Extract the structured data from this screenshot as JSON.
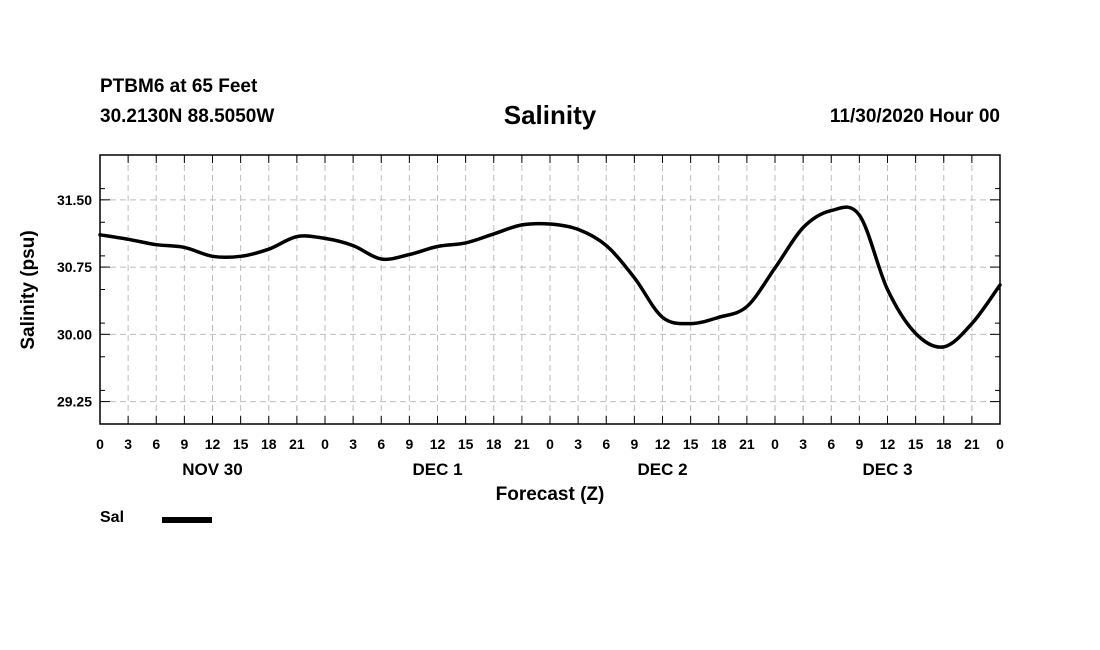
{
  "header": {
    "station": "PTBM6 at 65 Feet",
    "coords": "30.2130N 88.5050W",
    "title": "Salinity",
    "run_time": "11/30/2020 Hour 00"
  },
  "legend": {
    "label": "Sal",
    "color": "#000000"
  },
  "chart_data": {
    "type": "line",
    "title": "Salinity",
    "xlabel": "Forecast (Z)",
    "ylabel": "Salinity (psu)",
    "x_unit": "hours from 11/30/2020 00Z",
    "xlim": [
      0,
      96
    ],
    "ylim": [
      29.0,
      32.0
    ],
    "yticks": [
      29.25,
      30.0,
      30.75,
      31.5
    ],
    "ytick_labels": [
      "29.25",
      "30.00",
      "30.75",
      "31.50"
    ],
    "xtick_labels": [
      "0",
      "3",
      "6",
      "9",
      "12",
      "15",
      "18",
      "21",
      "0",
      "3",
      "6",
      "9",
      "12",
      "15",
      "18",
      "21",
      "0",
      "3",
      "6",
      "9",
      "12",
      "15",
      "18",
      "21",
      "0",
      "3",
      "6",
      "9",
      "12",
      "15",
      "18",
      "21",
      "0"
    ],
    "day_labels": [
      "NOV 30",
      "DEC 1",
      "DEC 2",
      "DEC 3"
    ],
    "grid": true,
    "series": [
      {
        "name": "Sal",
        "color": "#000000",
        "x": [
          0,
          3,
          6,
          9,
          12,
          15,
          18,
          21,
          24,
          27,
          30,
          33,
          36,
          39,
          42,
          45,
          48,
          51,
          54,
          57,
          60,
          63,
          66,
          69,
          72,
          75,
          78,
          81,
          84,
          87,
          90,
          93,
          96
        ],
        "values": [
          31.11,
          31.06,
          31.0,
          30.97,
          30.87,
          30.87,
          30.95,
          31.09,
          31.07,
          30.99,
          30.84,
          30.89,
          30.98,
          31.02,
          31.12,
          31.22,
          31.23,
          31.17,
          30.99,
          30.63,
          30.19,
          30.12,
          30.19,
          30.31,
          30.74,
          31.19,
          31.38,
          31.33,
          30.5,
          30.01,
          29.86,
          30.12,
          30.55
        ]
      }
    ]
  }
}
